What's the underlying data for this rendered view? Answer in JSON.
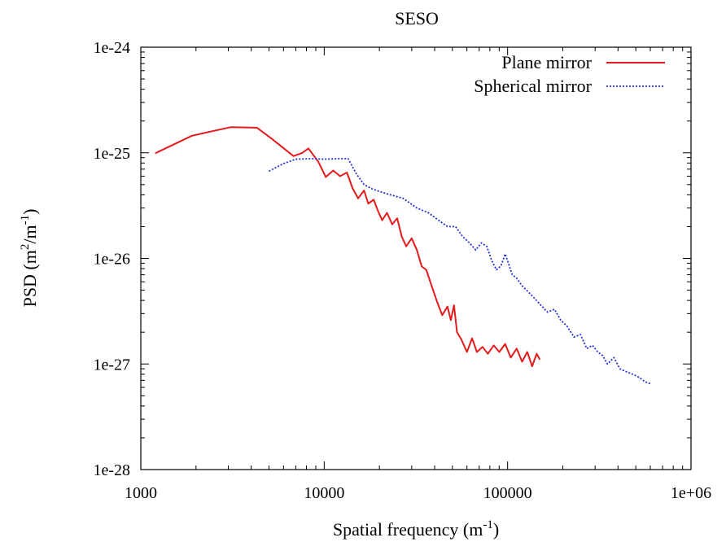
{
  "chart_data": {
    "type": "line",
    "title": "SESO",
    "xlabel": {
      "base": "Spatial frequency (m",
      "sup": "-1",
      "tail": ")"
    },
    "ylabel": {
      "base": "PSD (m",
      "sup1": "2",
      "mid": "/m",
      "sup2": "-1",
      "tail": ")"
    },
    "xscale": "log",
    "yscale": "log",
    "xlim": [
      1000,
      1000000
    ],
    "ylim": [
      1e-28,
      1e-24
    ],
    "xticks": [
      1000,
      10000,
      100000,
      1000000
    ],
    "xtick_labels": [
      "1000",
      "10000",
      "100000",
      "1e+06"
    ],
    "yticks": [
      1e-24,
      1e-25,
      1e-26,
      1e-27,
      1e-28
    ],
    "ytick_labels": [
      "1e-24",
      "1e-25",
      "1e-26",
      "1e-27",
      "1e-28"
    ],
    "grid": false,
    "legend_position": "top-right",
    "series": [
      {
        "name": "Plane mirror",
        "color": "#e41a1c",
        "style": "solid",
        "x": [
          1200,
          1900,
          3100,
          4300,
          5200,
          6800,
          7600,
          8200,
          9300,
          10200,
          11200,
          12200,
          13300,
          14300,
          15300,
          16500,
          17400,
          18600,
          19500,
          20700,
          22000,
          23500,
          25000,
          26500,
          28000,
          30000,
          32000,
          34000,
          36000,
          38500,
          41000,
          44000,
          47000,
          49000,
          51000,
          53000,
          56000,
          60000,
          64000,
          68000,
          73000,
          78000,
          84000,
          90000,
          97000,
          104000,
          112000,
          120000,
          128000,
          136000,
          144000,
          150000
        ],
        "y": [
          9.9e-26,
          1.45e-25,
          1.75e-25,
          1.73e-25,
          1.35e-25,
          9.3e-26,
          1e-25,
          1.1e-25,
          8.2e-26,
          5.9e-26,
          6.8e-26,
          6e-26,
          6.5e-26,
          4.6e-26,
          3.7e-26,
          4.4e-26,
          3.3e-26,
          3.6e-26,
          2.9e-26,
          2.3e-26,
          2.7e-26,
          2.1e-26,
          2.4e-26,
          1.6e-26,
          1.3e-26,
          1.55e-26,
          1.2e-26,
          8.4e-27,
          7.8e-27,
          5.5e-27,
          4e-27,
          2.9e-27,
          3.5e-27,
          2.6e-27,
          3.6e-27,
          2e-27,
          1.7e-27,
          1.3e-27,
          1.75e-27,
          1.3e-27,
          1.45e-27,
          1.25e-27,
          1.5e-27,
          1.3e-27,
          1.55e-27,
          1.15e-27,
          1.4e-27,
          1.05e-27,
          1.3e-27,
          9.5e-28,
          1.25e-27,
          1.1e-27
        ]
      },
      {
        "name": "Spherical mirror",
        "color": "#1f2fd6",
        "style": "dotted",
        "x": [
          5000,
          6000,
          7000,
          8500,
          10000,
          12000,
          13500,
          15000,
          16500,
          18000,
          20000,
          23000,
          27000,
          32000,
          37000,
          42000,
          47000,
          52000,
          57000,
          62000,
          67000,
          72000,
          77000,
          82000,
          87000,
          92000,
          97000,
          101000,
          106000,
          112000,
          120000,
          130000,
          140000,
          152000,
          165000,
          180000,
          195000,
          210000,
          230000,
          250000,
          270000,
          290000,
          310000,
          330000,
          350000,
          380000,
          410000,
          440000,
          480000,
          520000,
          560000,
          600000
        ],
        "y": [
          6.7e-26,
          7.9e-26,
          8.7e-26,
          8.8e-26,
          8.7e-26,
          8.8e-26,
          8.8e-26,
          6.3e-26,
          5e-26,
          4.6e-26,
          4.3e-26,
          4e-26,
          3.7e-26,
          3e-26,
          2.7e-26,
          2.3e-26,
          2e-26,
          2e-26,
          1.6e-26,
          1.4e-26,
          1.2e-26,
          1.4e-26,
          1.3e-26,
          9.5e-27,
          7.8e-27,
          8.5e-27,
          1.1e-26,
          9e-27,
          7e-27,
          6.5e-27,
          5.5e-27,
          4.8e-27,
          4.2e-27,
          3.6e-27,
          3.1e-27,
          3.3e-27,
          2.6e-27,
          2.3e-27,
          1.8e-27,
          1.9e-27,
          1.4e-27,
          1.5e-27,
          1.3e-27,
          1.2e-27,
          1e-27,
          1.15e-27,
          9e-28,
          8.5e-28,
          8e-28,
          7.5e-28,
          6.8e-28,
          6.5e-28
        ]
      }
    ]
  }
}
